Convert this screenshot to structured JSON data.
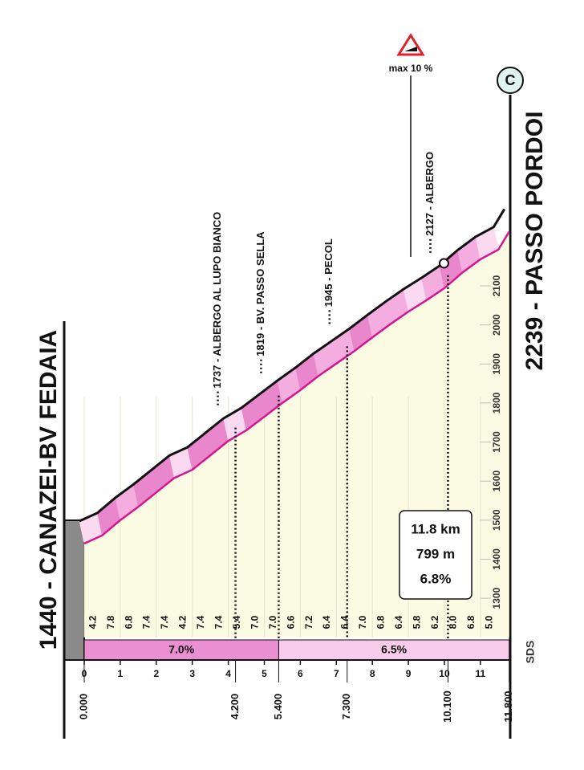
{
  "chart_data": {
    "type": "profile",
    "title_start": "1440 - CANAZEI-BV FEDAIA",
    "title_end": "2239 - PASSO PORDOI",
    "x": [
      0,
      0.5,
      1,
      1.5,
      2,
      2.5,
      3,
      3.5,
      4,
      4.5,
      5,
      5.5,
      6,
      6.5,
      7,
      7.5,
      8,
      8.5,
      9,
      9.5,
      10,
      10.5,
      11,
      11.5,
      11.8
    ],
    "values": [
      1440,
      1461,
      1500,
      1534,
      1571,
      1608,
      1629,
      1666,
      1703,
      1730,
      1765,
      1800,
      1833,
      1869,
      1901,
      1933,
      1968,
      2002,
      2034,
      2063,
      2094,
      2134,
      2168,
      2193,
      2239
    ],
    "gradients": [
      4.2,
      7.8,
      6.8,
      7.4,
      7.4,
      4.2,
      7.4,
      7.4,
      5.4,
      7,
      7,
      6.6,
      7.2,
      6.4,
      6.4,
      7,
      6.8,
      6.4,
      5.8,
      6.2,
      8,
      6.8,
      5
    ],
    "gradient_labels": [
      "4.2",
      "7.8",
      "6.8",
      "7.4",
      "7.4",
      "4.2",
      "7.4",
      "7.4",
      "5.4",
      "7.0",
      "7.0",
      "6.6",
      "7.2",
      "6.4",
      "6.4",
      "7.0",
      "6.8",
      "6.4",
      "5.8",
      "6.2",
      "8.0",
      "6.8",
      "5.0"
    ],
    "xlim": [
      0,
      11.8
    ],
    "ylim": [
      1200,
      2300
    ],
    "xticks": [
      0,
      1,
      2,
      3,
      4,
      5,
      6,
      7,
      8,
      9,
      10,
      11
    ],
    "yticks": [
      1300,
      1400,
      1500,
      1600,
      1700,
      1800,
      1900,
      2000,
      2100
    ],
    "km_points": [
      {
        "value": 0,
        "label": "0.000"
      },
      {
        "value": 4.2,
        "label": "4.200"
      },
      {
        "value": 5.4,
        "label": "5.400"
      },
      {
        "value": 7.3,
        "label": "7.300"
      },
      {
        "value": 10.1,
        "label": "10.100"
      },
      {
        "value": 11.8,
        "label": "11.800"
      }
    ],
    "sectors": [
      {
        "from": 0,
        "to": 5.4,
        "label": "7.0%",
        "color": "#ea8fd2"
      },
      {
        "from": 5.4,
        "to": 11.8,
        "label": "6.5%",
        "color": "#f8cbeb"
      }
    ],
    "pois": [
      {
        "km": 4.2,
        "altitude": 1737,
        "label": "1737 - ALBERGO AL LUPO BIANCO"
      },
      {
        "km": 5.4,
        "altitude": 1819,
        "label": "1819 - BV. PASSO SELLA"
      },
      {
        "km": 7.3,
        "altitude": 1945,
        "label": "1945 - PECOL"
      },
      {
        "km": 10.1,
        "altitude": 2127,
        "label": "2127 - ALBERGO"
      }
    ],
    "summary": {
      "distance": "11.8 km",
      "gain": "799 m",
      "gradient": "6.8%"
    },
    "max_gradient": "max 10 %",
    "category": "C",
    "logo": "SDS"
  }
}
